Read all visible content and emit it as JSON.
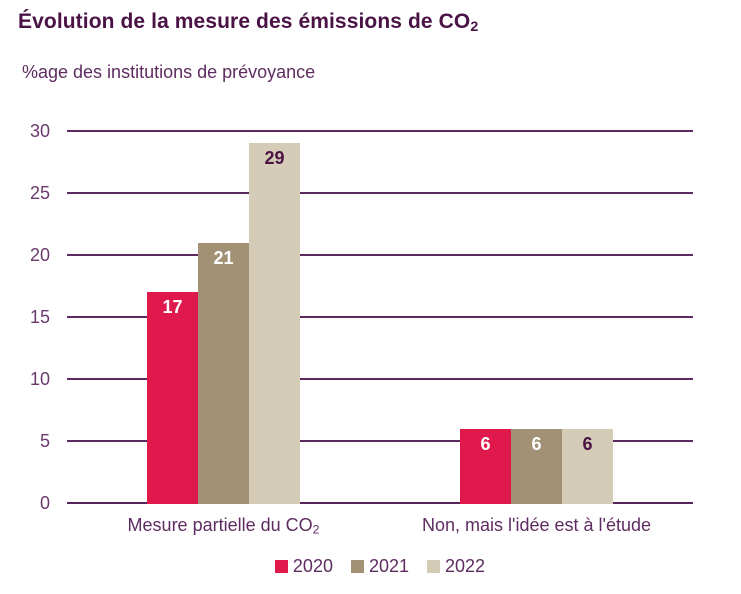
{
  "header": {
    "title": "Évolution de la mesure des émissions de CO₂",
    "subtitle": "%age des institutions de prévoyance"
  },
  "palette": {
    "title_text": "#4a1245",
    "body_text": "#5e2c60",
    "tick_text": "#6a3a6e",
    "gridline": "#5c2a5e",
    "background": "#ffffff"
  },
  "chart_data": {
    "type": "bar",
    "title": "Évolution de la mesure des émissions de CO₂",
    "subtitle": "%age des institutions de prévoyance",
    "xlabel": "",
    "ylabel": "%age des institutions de prévoyance",
    "categories": [
      "Mesure partielle du CO₂",
      "Non, mais l'idée est à l'étude"
    ],
    "series": [
      {
        "name": "2020",
        "values": [
          17,
          6
        ],
        "color": "#e0194d",
        "label_color": "#ffffff"
      },
      {
        "name": "2021",
        "values": [
          21,
          6
        ],
        "color": "#a39176",
        "label_color": "#ffffff"
      },
      {
        "name": "2022",
        "values": [
          29,
          6
        ],
        "color": "#d4ccb7",
        "label_color": "#4a1245"
      }
    ],
    "ylim": [
      0,
      30
    ],
    "yticks": [
      0,
      5,
      10,
      15,
      20,
      25,
      30
    ],
    "grid": true,
    "bar_value_labels": "inside-top",
    "legend_position": "bottom"
  }
}
